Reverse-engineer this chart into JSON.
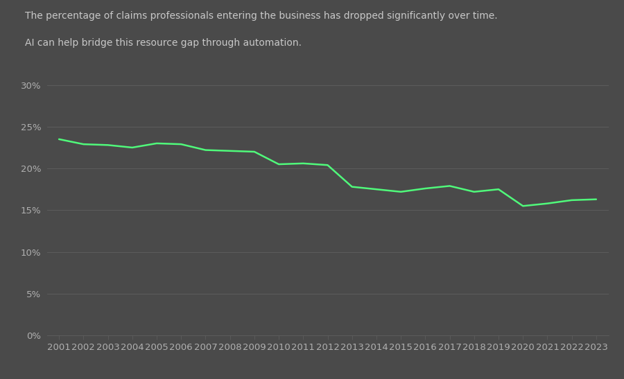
{
  "title_line1": "The percentage of claims professionals entering the business has dropped significantly over time.",
  "title_line2": "AI can help bridge this resource gap through automation.",
  "years": [
    2001,
    2002,
    2003,
    2004,
    2005,
    2006,
    2007,
    2008,
    2009,
    2010,
    2011,
    2012,
    2013,
    2014,
    2015,
    2016,
    2017,
    2018,
    2019,
    2020,
    2021,
    2022,
    2023
  ],
  "values": [
    0.235,
    0.229,
    0.228,
    0.225,
    0.23,
    0.229,
    0.222,
    0.221,
    0.22,
    0.205,
    0.206,
    0.204,
    0.178,
    0.175,
    0.172,
    0.176,
    0.179,
    0.172,
    0.175,
    0.155,
    0.158,
    0.162,
    0.163
  ],
  "line_color": "#50fa7b",
  "background_color": "#4a4a4a",
  "grid_color": "#606060",
  "text_color": "#b0b0b0",
  "title_color": "#c8c8c8",
  "yticks": [
    0.0,
    0.05,
    0.1,
    0.15,
    0.2,
    0.25,
    0.3
  ],
  "ylim": [
    0.0,
    0.32
  ],
  "xlim": [
    2001,
    2023
  ],
  "line_width": 1.8,
  "title_fontsize": 10.0,
  "tick_fontsize": 9.5
}
